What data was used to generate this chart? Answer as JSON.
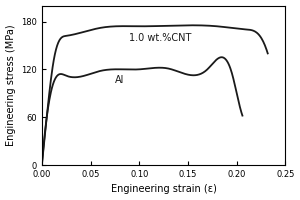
{
  "title": "",
  "xlabel": "Engineering strain (ε)",
  "ylabel": "Engineering stress (MPa)",
  "xlim": [
    0,
    0.25
  ],
  "ylim": [
    0,
    200
  ],
  "xticks": [
    0.0,
    0.05,
    0.1,
    0.15,
    0.2,
    0.25
  ],
  "yticks": [
    0,
    60,
    120,
    180
  ],
  "label_cnt": "1.0 wt.%CNT",
  "label_al": "Al",
  "line_color": "#1a1a1a",
  "font_size_labels": 7,
  "font_size_ticks": 6,
  "font_size_annotations": 7,
  "cnt_keypoints_e": [
    0.0,
    0.005,
    0.012,
    0.025,
    0.06,
    0.1,
    0.14,
    0.18,
    0.21,
    0.225,
    0.232
  ],
  "cnt_keypoints_s": [
    0.0,
    60.0,
    130.0,
    162.0,
    172.0,
    174.0,
    175.0,
    174.0,
    170.0,
    160.0,
    140.0
  ],
  "al_keypoints_e": [
    0.0,
    0.004,
    0.01,
    0.025,
    0.06,
    0.1,
    0.13,
    0.17,
    0.195,
    0.202,
    0.206
  ],
  "al_keypoints_s": [
    0.0,
    50.0,
    95.0,
    112.0,
    118.0,
    120.0,
    121.0,
    120.0,
    116.0,
    80.0,
    62.0
  ],
  "cnt_label_e": 0.09,
  "cnt_label_s": 155,
  "al_label_e": 0.075,
  "al_label_s": 103
}
